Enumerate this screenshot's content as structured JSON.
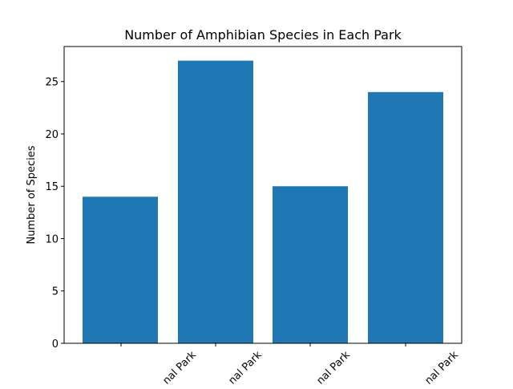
{
  "chart_data": {
    "type": "bar",
    "title": "Number of Amphibian Species in Each Park",
    "xlabel": "",
    "ylabel": "Number of Species",
    "categories_visible": [
      "",
      "nal Park",
      "nal Park",
      "nal Park",
      "nal Park"
    ],
    "values": [
      14,
      27,
      15,
      24
    ],
    "ylim": [
      0,
      28.35
    ],
    "yticks": [
      0,
      5,
      10,
      15,
      20,
      25
    ],
    "bar_color": "#1f77b4",
    "grid": false,
    "legend": "none"
  }
}
